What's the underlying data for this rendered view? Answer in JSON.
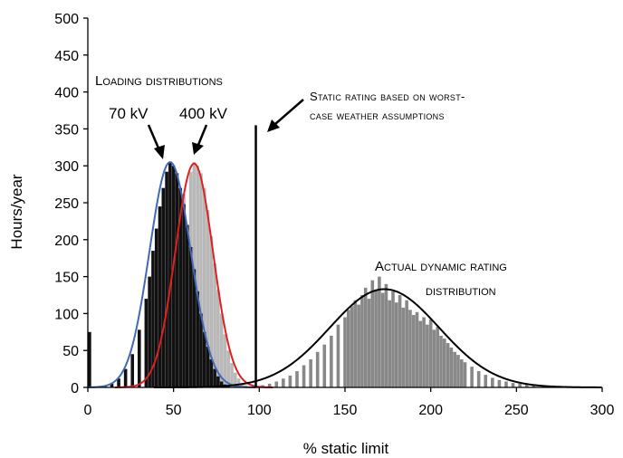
{
  "chart_data": {
    "type": "histogram",
    "title": "",
    "xlabel": "% static limit",
    "ylabel": "Hours/year",
    "xlim": [
      0,
      300
    ],
    "ylim": [
      0,
      500
    ],
    "xticks": [
      0,
      50,
      100,
      150,
      200,
      250,
      300
    ],
    "yticks": [
      0,
      50,
      100,
      150,
      200,
      250,
      300,
      350,
      400,
      450,
      500
    ],
    "grid": false,
    "annotations": {
      "loading_distributions": "Loading distributions",
      "kv70": "70 kV",
      "kv400": "400 kV",
      "static_rating_line1": "Static rating based on worst-",
      "static_rating_line2": "case weather assumptions",
      "dynamic_line1": "Actual dynamic rating",
      "dynamic_line2": "distribution"
    },
    "static_rating_x": 98,
    "static_rating_top": 355,
    "series": [
      {
        "name": "70 kV",
        "kind": "histogram+fit",
        "bar_color": "#111111",
        "line_color": "#4169b8",
        "mean": 48,
        "sd": 12,
        "peak": 305,
        "outlier": {
          "x": 1,
          "y": 75
        },
        "bars": [
          [
            1,
            75
          ],
          [
            10,
            2
          ],
          [
            14,
            5
          ],
          [
            18,
            12
          ],
          [
            22,
            25
          ],
          [
            26,
            45
          ],
          [
            30,
            78
          ],
          [
            34,
            120
          ],
          [
            36,
            150
          ],
          [
            38,
            185
          ],
          [
            40,
            215
          ],
          [
            42,
            245
          ],
          [
            44,
            270
          ],
          [
            46,
            292
          ],
          [
            48,
            305
          ],
          [
            50,
            300
          ],
          [
            52,
            290
          ],
          [
            54,
            270
          ],
          [
            56,
            248
          ],
          [
            58,
            220
          ],
          [
            60,
            190
          ],
          [
            62,
            160
          ],
          [
            64,
            130
          ],
          [
            66,
            100
          ],
          [
            68,
            75
          ],
          [
            70,
            55
          ],
          [
            72,
            38
          ],
          [
            74,
            25
          ],
          [
            76,
            15
          ],
          [
            78,
            8
          ],
          [
            80,
            4
          ],
          [
            82,
            2
          ]
        ]
      },
      {
        "name": "400 kV",
        "kind": "histogram+fit",
        "bar_color": "#b8b8b8",
        "line_color": "#e02020",
        "mean": 62,
        "sd": 11,
        "peak": 303,
        "bars": [
          [
            40,
            60
          ],
          [
            44,
            110
          ],
          [
            48,
            165
          ],
          [
            52,
            220
          ],
          [
            56,
            262
          ],
          [
            60,
            292
          ],
          [
            62,
            305
          ],
          [
            64,
            300
          ],
          [
            66,
            290
          ],
          [
            68,
            270
          ],
          [
            70,
            240
          ],
          [
            72,
            205
          ],
          [
            74,
            168
          ],
          [
            76,
            132
          ],
          [
            78,
            100
          ],
          [
            80,
            72
          ],
          [
            82,
            50
          ],
          [
            84,
            33
          ],
          [
            86,
            20
          ],
          [
            88,
            12
          ],
          [
            90,
            6
          ],
          [
            92,
            3
          ],
          [
            96,
            1
          ],
          [
            100,
            1
          ],
          [
            104,
            1
          ],
          [
            108,
            1
          ]
        ]
      },
      {
        "name": "Actual dynamic rating distribution",
        "kind": "histogram+fit",
        "bar_color": "#888888",
        "line_color": "#000000",
        "mean": 173,
        "sd": 32,
        "peak": 133,
        "bars": [
          [
            102,
            3
          ],
          [
            106,
            5
          ],
          [
            110,
            8
          ],
          [
            114,
            12
          ],
          [
            118,
            16
          ],
          [
            122,
            22
          ],
          [
            126,
            30
          ],
          [
            130,
            38
          ],
          [
            134,
            48
          ],
          [
            138,
            58
          ],
          [
            142,
            70
          ],
          [
            146,
            85
          ],
          [
            150,
            95
          ],
          [
            152,
            105
          ],
          [
            154,
            110
          ],
          [
            156,
            118
          ],
          [
            158,
            112
          ],
          [
            160,
            125
          ],
          [
            162,
            135
          ],
          [
            164,
            120
          ],
          [
            166,
            145
          ],
          [
            168,
            132
          ],
          [
            170,
            150
          ],
          [
            172,
            128
          ],
          [
            174,
            140
          ],
          [
            176,
            118
          ],
          [
            178,
            130
          ],
          [
            180,
            115
          ],
          [
            182,
            125
          ],
          [
            184,
            108
          ],
          [
            186,
            118
          ],
          [
            188,
            105
          ],
          [
            190,
            98
          ],
          [
            192,
            102
          ],
          [
            194,
            90
          ],
          [
            196,
            95
          ],
          [
            198,
            85
          ],
          [
            200,
            92
          ],
          [
            202,
            78
          ],
          [
            204,
            82
          ],
          [
            206,
            70
          ],
          [
            208,
            66
          ],
          [
            210,
            60
          ],
          [
            212,
            54
          ],
          [
            214,
            48
          ],
          [
            216,
            44
          ],
          [
            218,
            38
          ],
          [
            220,
            34
          ],
          [
            224,
            28
          ],
          [
            228,
            22
          ],
          [
            232,
            17
          ],
          [
            236,
            13
          ],
          [
            240,
            10
          ],
          [
            244,
            8
          ],
          [
            248,
            6
          ],
          [
            252,
            5
          ],
          [
            256,
            4
          ],
          [
            260,
            3
          ],
          [
            266,
            2
          ],
          [
            272,
            2
          ],
          [
            280,
            1
          ],
          [
            290,
            1
          ],
          [
            298,
            1
          ]
        ]
      }
    ]
  }
}
